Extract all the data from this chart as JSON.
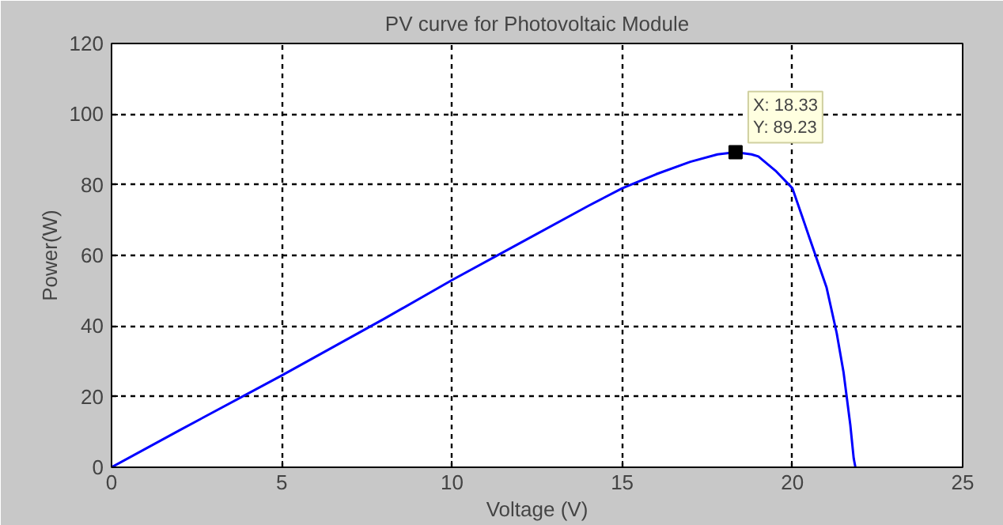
{
  "chart_data": {
    "type": "line",
    "title": "PV curve for Photovoltaic Module",
    "xlabel": "Voltage (V)",
    "ylabel": "Power(W)",
    "x": [
      0,
      2,
      5,
      8,
      10,
      12,
      14,
      15,
      16,
      17,
      17.8,
      18.33,
      18.8,
      19,
      19.5,
      20,
      20.5,
      21,
      21.3,
      21.5,
      21.7,
      21.8,
      21.85
    ],
    "series": [
      {
        "color": "#0000ff",
        "values": [
          0,
          10.5,
          26,
          42,
          53,
          63.5,
          74,
          79,
          83,
          86.5,
          88.6,
          89.23,
          88.6,
          88,
          84,
          79,
          65,
          51,
          38,
          27,
          12,
          2.5,
          0
        ]
      }
    ],
    "xlim": [
      0,
      25
    ],
    "ylim": [
      0,
      120
    ],
    "xticks": [
      0,
      5,
      10,
      15,
      20,
      25
    ],
    "yticks": [
      0,
      20,
      40,
      60,
      80,
      100,
      120
    ],
    "grid": true,
    "marker": "none",
    "line_style": "solid",
    "annotations": [
      {
        "text": "X: 18.33\nY: 89.23",
        "x": 18.33,
        "y": 89.23
      }
    ]
  }
}
